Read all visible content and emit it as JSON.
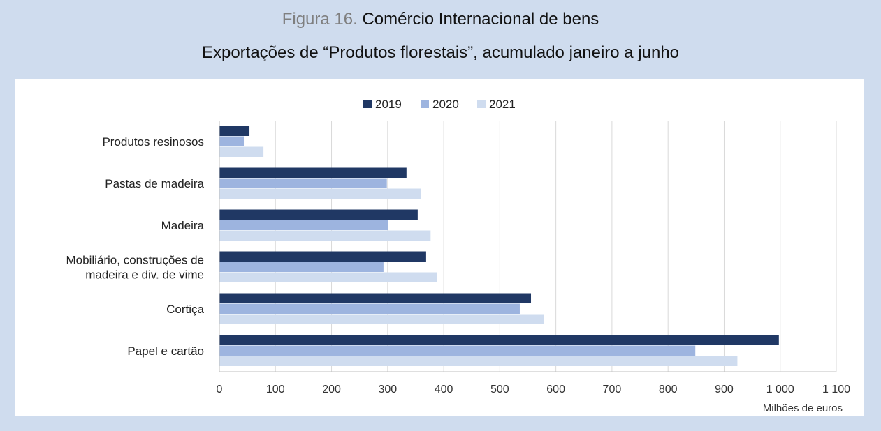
{
  "title": {
    "figure_label": "Figura 16.",
    "main": "Comércio Internacional de bens",
    "subtitle": "Exportações de “Produtos florestais”, acumulado janeiro a junho"
  },
  "colors": {
    "s2019": "#203864",
    "s2020": "#9db4df",
    "s2021": "#cfdcef",
    "grid": "#d9d9d9"
  },
  "chart_data": {
    "type": "bar",
    "orientation": "horizontal",
    "categories": [
      [
        "Produtos resinosos"
      ],
      [
        "Pastas de madeira"
      ],
      [
        "Madeira"
      ],
      [
        "Mobiliário, construções de",
        "madeira e div. de vime"
      ],
      [
        "Cortiça"
      ],
      [
        "Papel e cartão"
      ]
    ],
    "series": [
      {
        "name": "2019",
        "values": [
          53,
          333,
          353,
          368,
          555,
          997
        ]
      },
      {
        "name": "2020",
        "values": [
          43,
          298,
          300,
          292,
          535,
          848
        ]
      },
      {
        "name": "2021",
        "values": [
          78,
          359,
          376,
          388,
          578,
          923
        ]
      }
    ],
    "xlim": [
      0,
      1100
    ],
    "xticks": [
      0,
      100,
      200,
      300,
      400,
      500,
      600,
      700,
      800,
      900,
      1000,
      1100
    ],
    "xtick_labels": [
      "0",
      "100",
      "200",
      "300",
      "400",
      "500",
      "600",
      "700",
      "800",
      "900",
      "1 000",
      "1 100"
    ],
    "xlabel": "Milhões de euros",
    "grid": true,
    "legend_position": "top-center"
  }
}
